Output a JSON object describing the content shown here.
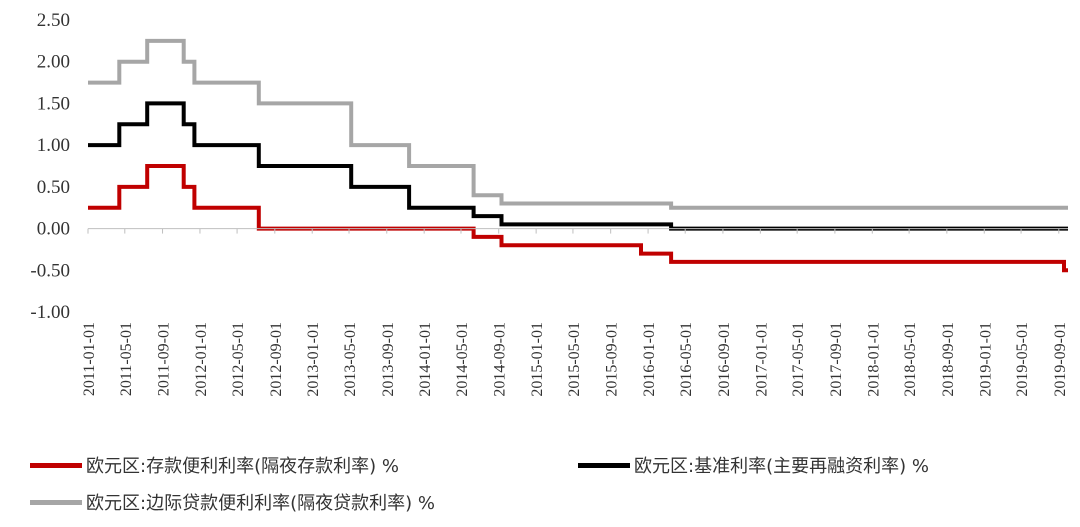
{
  "chart_data": {
    "type": "line",
    "title": "",
    "xlabel": "",
    "ylabel": "",
    "ylim": [
      -1.0,
      2.5
    ],
    "yticks": [
      "2.50",
      "2.00",
      "1.50",
      "1.00",
      "0.50",
      "0.00",
      "-0.50",
      "-1.00"
    ],
    "ytick_values": [
      2.5,
      2.0,
      1.5,
      1.0,
      0.5,
      0.0,
      -0.5,
      -1.0
    ],
    "xlim": [
      "2011-01-01",
      "2019-10-01"
    ],
    "xticks": [
      "2011-01-01",
      "2011-05-01",
      "2011-09-01",
      "2012-01-01",
      "2012-05-01",
      "2012-09-01",
      "2013-01-01",
      "2013-05-01",
      "2013-09-01",
      "2014-01-01",
      "2014-05-01",
      "2014-09-01",
      "2015-01-01",
      "2015-05-01",
      "2015-09-01",
      "2016-01-01",
      "2016-05-01",
      "2016-09-01",
      "2017-01-01",
      "2017-05-01",
      "2017-09-01",
      "2018-01-01",
      "2018-05-01",
      "2018-09-01",
      "2019-01-01",
      "2019-05-01",
      "2019-09-01"
    ],
    "grid": false,
    "legend_position": "bottom",
    "series": [
      {
        "name": "欧元区:存款便利利率(隔夜存款利率) %",
        "color": "#c00000",
        "step": true,
        "x": [
          "2011-01-01",
          "2011-04-13",
          "2011-07-13",
          "2011-11-09",
          "2011-12-14",
          "2012-07-11",
          "2014-06-11",
          "2014-09-10",
          "2014-12-09",
          "2015-12-09",
          "2016-03-16",
          "2019-09-18",
          "2019-10-01"
        ],
        "y": [
          0.25,
          0.5,
          0.75,
          0.5,
          0.25,
          0.0,
          -0.1,
          -0.2,
          -0.2,
          -0.3,
          -0.4,
          -0.5,
          -0.5
        ]
      },
      {
        "name": "欧元区:基准利率(主要再融资利率) %",
        "color": "#000000",
        "step": true,
        "x": [
          "2011-01-01",
          "2011-04-13",
          "2011-07-13",
          "2011-11-09",
          "2011-12-14",
          "2012-07-11",
          "2013-05-08",
          "2013-11-13",
          "2014-06-11",
          "2014-09-10",
          "2016-03-16",
          "2019-10-01"
        ],
        "y": [
          1.0,
          1.25,
          1.5,
          1.25,
          1.0,
          0.75,
          0.5,
          0.25,
          0.15,
          0.05,
          0.0,
          0.0
        ]
      },
      {
        "name": "欧元区:边际贷款便利利率(隔夜贷款利率) %",
        "color": "#a6a6a6",
        "step": true,
        "x": [
          "2011-01-01",
          "2011-04-13",
          "2011-07-13",
          "2011-11-09",
          "2011-12-14",
          "2012-07-11",
          "2013-05-08",
          "2013-11-13",
          "2014-06-11",
          "2014-09-10",
          "2016-03-16",
          "2019-10-01"
        ],
        "y": [
          1.75,
          2.0,
          2.25,
          2.0,
          1.75,
          1.5,
          1.0,
          0.75,
          0.4,
          0.3,
          0.25,
          0.25
        ]
      }
    ]
  }
}
